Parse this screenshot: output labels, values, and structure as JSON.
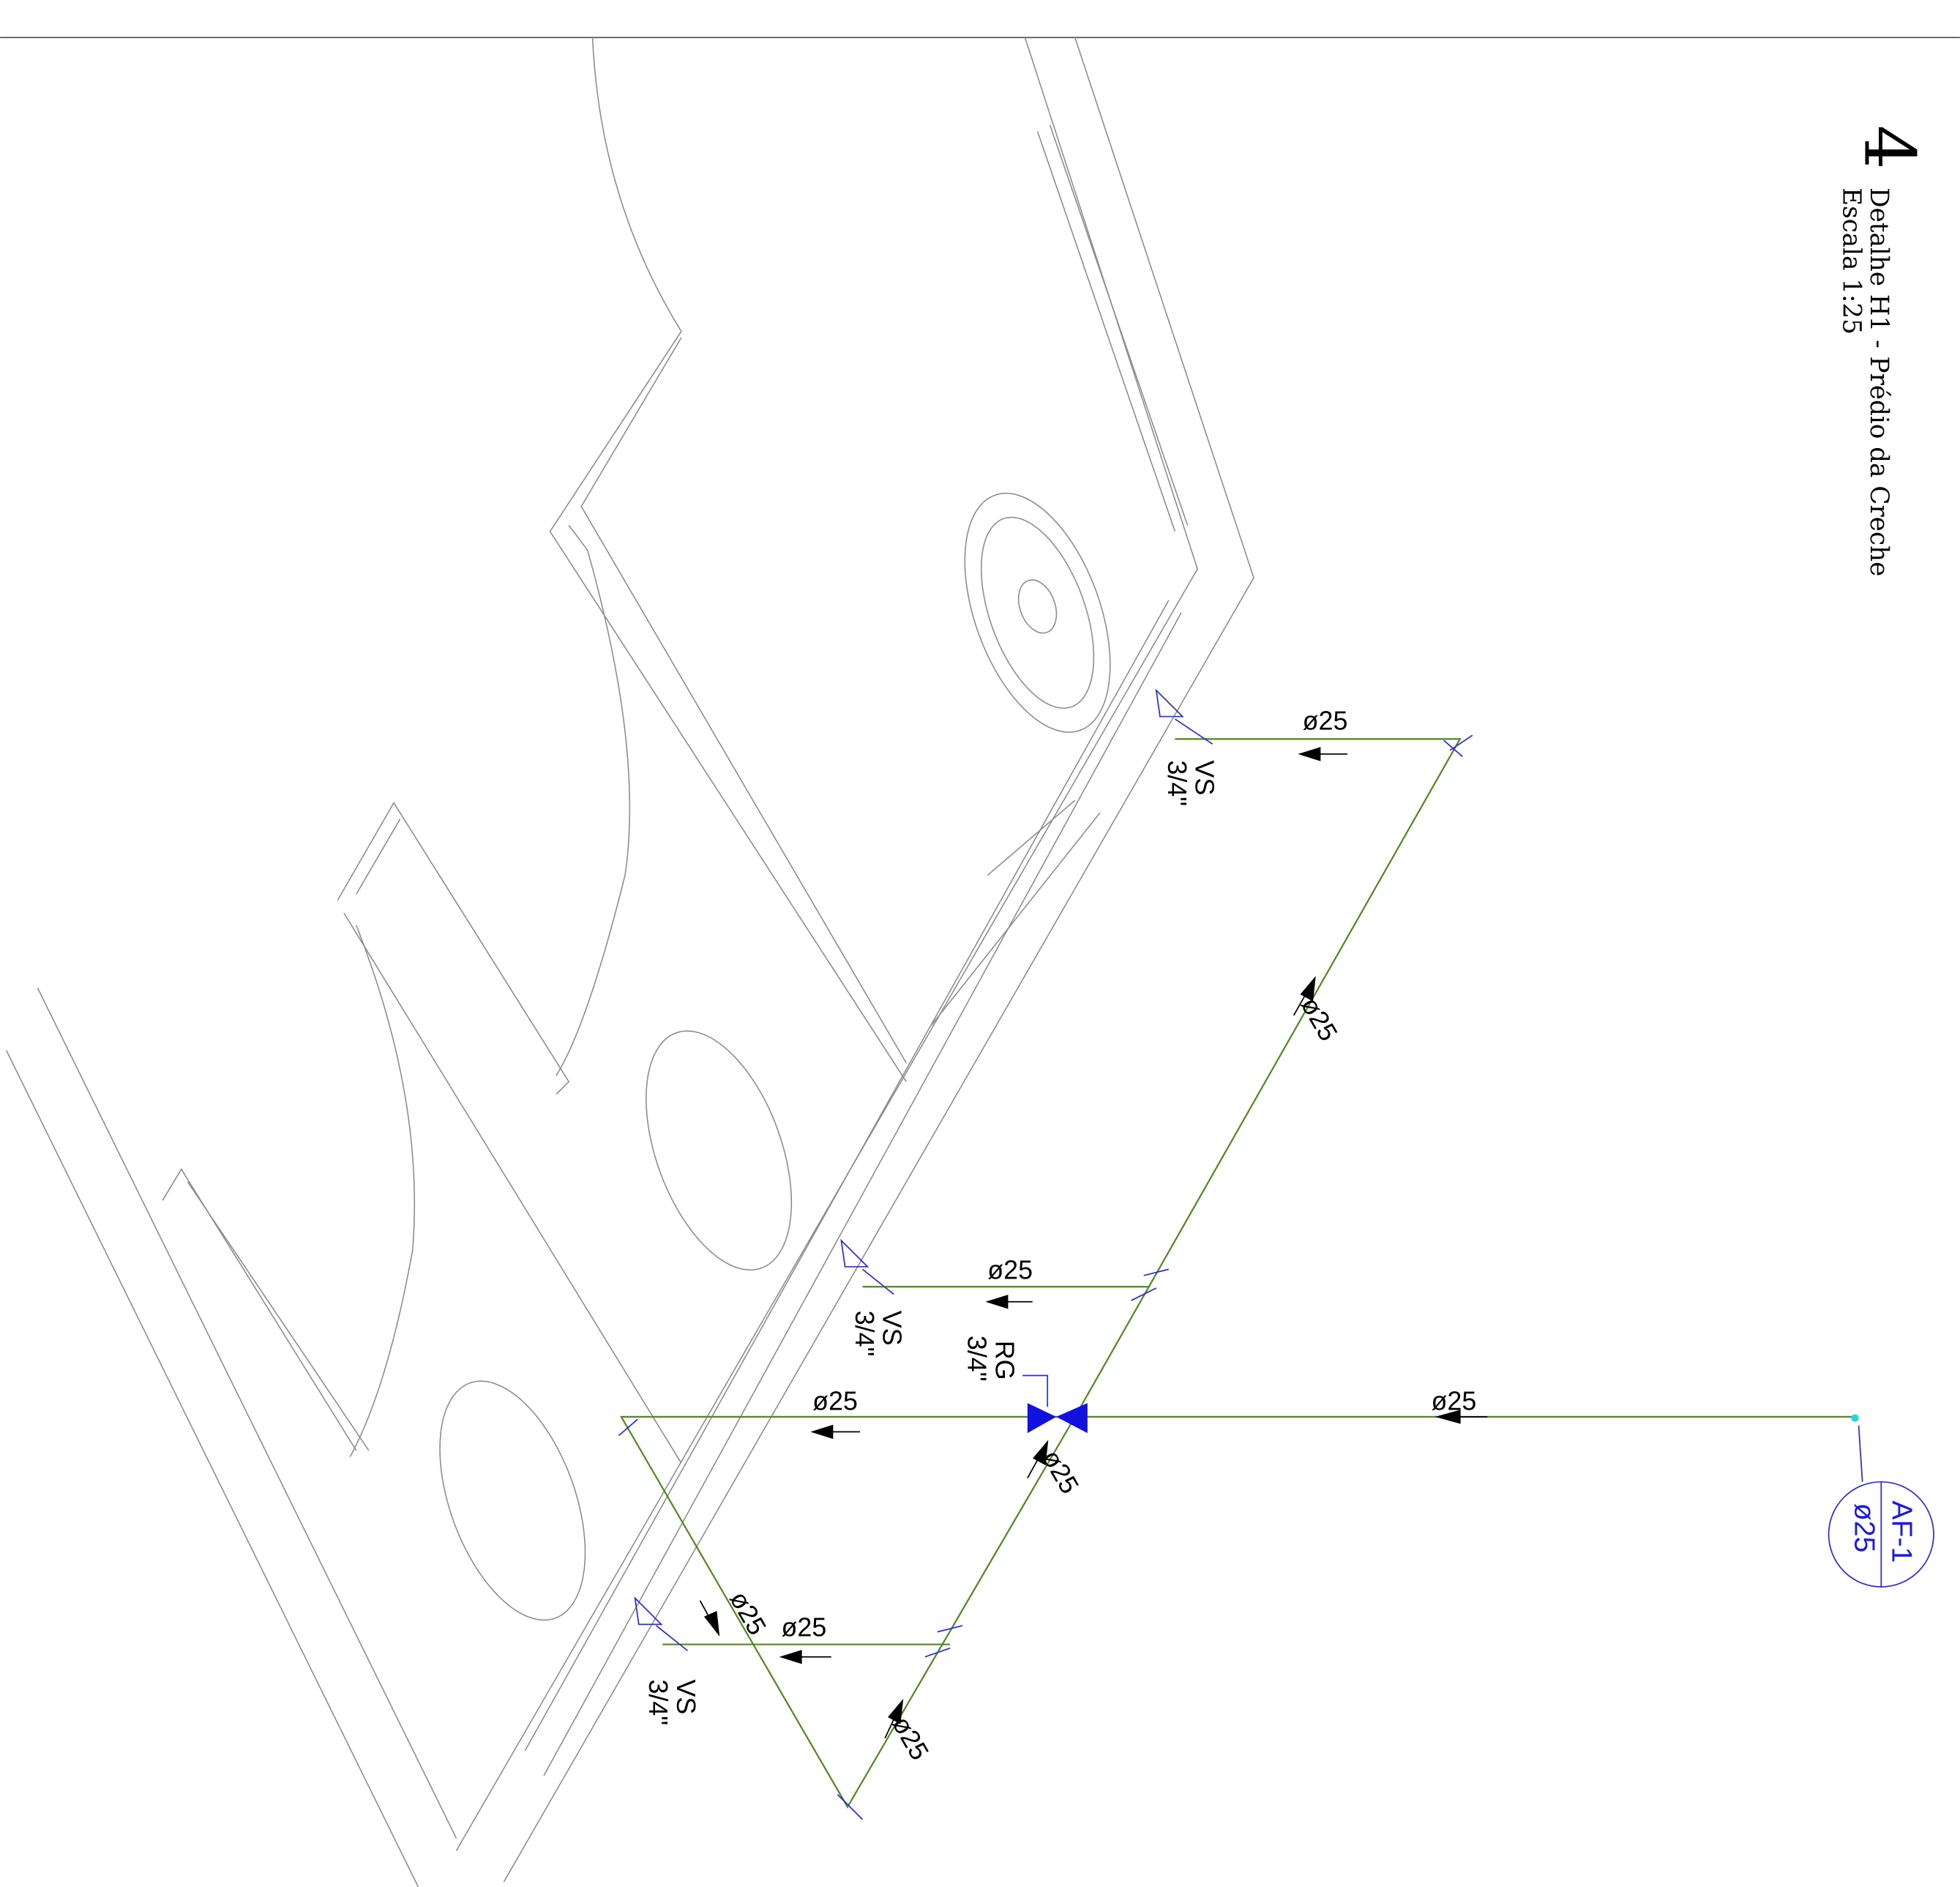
{
  "title": {
    "number": "4",
    "name": "Detalhe H1 - Prédio da Creche",
    "scale": "Escala 1:25"
  },
  "riser": {
    "id": "AF-1",
    "diameter": "ø25"
  },
  "pipe_labels": [
    "ø25",
    "ø25",
    "ø25",
    "ø25",
    "ø25",
    "ø25",
    "ø25",
    "ø25",
    "ø25"
  ],
  "fixtures": [
    {
      "type": "VS",
      "size": "3/4\""
    },
    {
      "type": "VS",
      "size": "3/4\""
    },
    {
      "type": "VS",
      "size": "3/4\""
    }
  ],
  "valve": {
    "type": "RG",
    "size": "3/4\""
  }
}
